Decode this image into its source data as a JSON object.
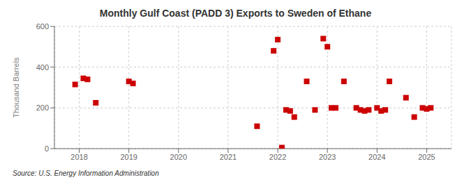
{
  "chart_data": {
    "type": "scatter",
    "title": "Monthly Gulf Coast (PADD 3) Exports to Sweden of Ethane",
    "y_label": "Thousand Barrels",
    "annotations": [
      "Source: U.S. Energy Information Administration"
    ],
    "x": [
      2017.917,
      2018.083,
      2018.167,
      2018.333,
      2019.0,
      2019.083,
      2021.583,
      2021.917,
      2022.0,
      2022.083,
      2022.167,
      2022.25,
      2022.333,
      2022.583,
      2022.75,
      2022.917,
      2023.0,
      2023.083,
      2023.167,
      2023.333,
      2023.583,
      2023.667,
      2023.75,
      2023.833,
      2024.0,
      2024.083,
      2024.167,
      2024.25,
      2024.583,
      2024.75,
      2024.917,
      2025.0,
      2025.083
    ],
    "values": [
      315,
      345,
      340,
      225,
      330,
      320,
      110,
      480,
      535,
      5,
      190,
      185,
      155,
      330,
      190,
      540,
      500,
      200,
      200,
      330,
      200,
      190,
      185,
      190,
      200,
      185,
      190,
      330,
      250,
      155,
      200,
      195,
      200
    ],
    "color": "#cc0000",
    "marker": "square",
    "xlim": [
      2017.5,
      2025.5
    ],
    "xticks": [
      2018,
      2019,
      2020,
      2021,
      2022,
      2023,
      2024,
      2025
    ],
    "ylim": [
      0,
      600
    ],
    "yticks": [
      0,
      200,
      400,
      600
    ],
    "grid": true
  }
}
